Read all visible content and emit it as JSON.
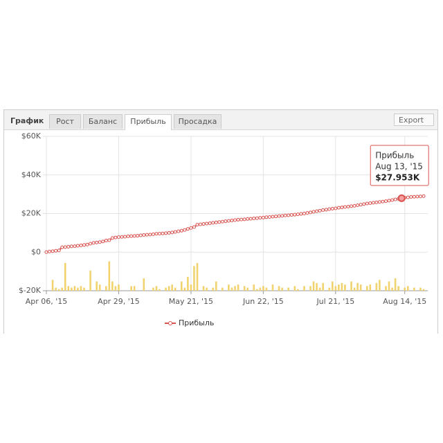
{
  "header": {
    "title": "График",
    "tabs": [
      "Рост",
      "Баланс",
      "Прибыль",
      "Просадка"
    ],
    "active_tab": 2,
    "export": "Export"
  },
  "chart_data": {
    "type": "line",
    "categories": [
      "Apr 06, '15",
      null,
      null,
      null,
      null,
      null,
      null,
      null,
      null,
      null,
      null,
      null,
      null,
      null,
      null,
      null,
      null,
      null,
      null,
      null,
      null,
      null,
      null,
      "Apr 29, '15",
      null,
      null,
      null,
      null,
      null,
      null,
      null,
      null,
      null,
      null,
      null,
      null,
      null,
      null,
      null,
      null,
      null,
      null,
      null,
      null,
      null,
      null,
      "May 21, '15",
      null,
      null,
      null,
      null,
      null,
      null,
      null,
      null,
      null,
      null,
      null,
      null,
      null,
      null,
      null,
      null,
      null,
      null,
      null,
      null,
      null,
      null,
      "Jun 22, '15",
      null,
      null,
      null,
      null,
      null,
      null,
      null,
      null,
      null,
      null,
      null,
      null,
      null,
      null,
      null,
      null,
      null,
      null,
      null,
      null,
      null,
      null,
      "Jul 21, '15",
      null,
      null,
      null,
      null,
      null,
      null,
      null,
      null,
      null,
      null,
      null,
      null,
      null,
      null,
      null,
      null,
      null,
      null,
      null,
      null,
      null,
      "Aug 14, '15",
      null,
      null,
      null,
      null,
      null,
      null
    ],
    "series": [
      {
        "name": "Прибыль",
        "color": "#d9534f",
        "values": [
          0,
          300,
          500,
          700,
          900,
          2500,
          2600,
          2800,
          3000,
          3100,
          3300,
          3500,
          3700,
          3900,
          4400,
          4800,
          5000,
          5200,
          5500,
          6000,
          6200,
          7300,
          7600,
          7800,
          7900,
          8000,
          8200,
          8300,
          8400,
          8500,
          8700,
          8900,
          9000,
          9100,
          9300,
          9500,
          9600,
          9700,
          9800,
          10000,
          10200,
          10500,
          10800,
          11100,
          11500,
          12000,
          12500,
          13000,
          14200,
          14400,
          14600,
          14800,
          15000,
          15200,
          15400,
          15600,
          15800,
          16000,
          16200,
          16400,
          16600,
          16800,
          16900,
          17000,
          17200,
          17300,
          17500,
          17600,
          17800,
          17900,
          18100,
          18200,
          18400,
          18500,
          18700,
          18800,
          19000,
          19100,
          19300,
          19400,
          19600,
          19800,
          20000,
          20300,
          20600,
          20900,
          21200,
          21500,
          21800,
          22000,
          22300,
          22500,
          22700,
          23000,
          23200,
          23400,
          23600,
          23800,
          24000,
          24300,
          24600,
          24900,
          25200,
          25400,
          25600,
          25800,
          26000,
          26200,
          26400,
          26700,
          27000,
          27300,
          27600,
          27953,
          28200,
          28400,
          28600,
          28700,
          28800,
          28900,
          29000
        ]
      },
      {
        "type": "bar",
        "color": "#f0d36e",
        "axis": "y2",
        "values": [
          null,
          null,
          7,
          2,
          1,
          2,
          18,
          3,
          2,
          3,
          2,
          3,
          2,
          null,
          13,
          null,
          6,
          4,
          null,
          3,
          19,
          6,
          3,
          4,
          null,
          null,
          null,
          3,
          3,
          null,
          null,
          8,
          null,
          null,
          2,
          3,
          1,
          null,
          2,
          3,
          4,
          2,
          null,
          6,
          2,
          9,
          4,
          16,
          18,
          null,
          3,
          2,
          null,
          2,
          6,
          null,
          2,
          null,
          4,
          2,
          3,
          4,
          null,
          3,
          2,
          null,
          4,
          1,
          2,
          3,
          2,
          null,
          4,
          null,
          3,
          2,
          null,
          2,
          null,
          3,
          1,
          null,
          3,
          null,
          3,
          6,
          5,
          2,
          5,
          null,
          2,
          6,
          3,
          4,
          5,
          4,
          null,
          6,
          2,
          5,
          4,
          null,
          3,
          4,
          null,
          5,
          7,
          null,
          3,
          6,
          2,
          8,
          3,
          null,
          2,
          3,
          null,
          2,
          null,
          2,
          1
        ]
      }
    ],
    "ylim": [
      -20000,
      60000
    ],
    "yticks": [
      {
        "value": -20000,
        "label": "$-20K"
      },
      {
        "value": 0,
        "label": "$0"
      },
      {
        "value": 20000,
        "label": "$20K"
      },
      {
        "value": 40000,
        "label": "$40K"
      },
      {
        "value": 60000,
        "label": "$60K"
      }
    ],
    "y2lim": [
      0,
      100
    ],
    "grid": true,
    "legend": "bottom",
    "tooltip": {
      "title": "Прибыль",
      "date": "Aug 13, '15",
      "value_label": "$27.953K",
      "value": 27953
    }
  }
}
